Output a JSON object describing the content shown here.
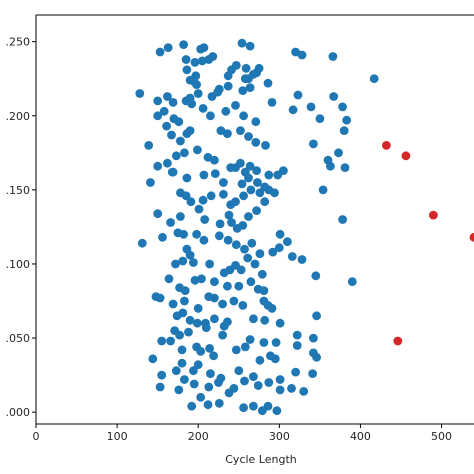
{
  "chart_data": {
    "type": "scatter",
    "xlabel": "Cycle Length",
    "xlim": [
      0,
      540
    ],
    "ylim": [
      -0.008,
      0.268
    ],
    "x_ticks": [
      0,
      100,
      200,
      300,
      400,
      500
    ],
    "x_tick_labels": [
      "0",
      "100",
      "200",
      "300",
      "400",
      "500"
    ],
    "y_ticks": [
      0.0,
      0.05,
      0.1,
      0.15,
      0.2,
      0.25
    ],
    "y_tick_labels": [
      ".000",
      ".050",
      ".100",
      ".150",
      ".200",
      ".250"
    ],
    "grid": false,
    "colors": {
      "normal": "#1f77b4",
      "highlight": "#d62728"
    },
    "series": [
      {
        "color": "#1f77b4",
        "points": [
          [
            153,
            0.243
          ],
          [
            163,
            0.246
          ],
          [
            182,
            0.248
          ],
          [
            203,
            0.245
          ],
          [
            207,
            0.246
          ],
          [
            254,
            0.249
          ],
          [
            264,
            0.247
          ],
          [
            320,
            0.243
          ],
          [
            328,
            0.241
          ],
          [
            366,
            0.24
          ],
          [
            417,
            0.225
          ],
          [
            185,
            0.238
          ],
          [
            196,
            0.236
          ],
          [
            205,
            0.237
          ],
          [
            213,
            0.238
          ],
          [
            218,
            0.24
          ],
          [
            247,
            0.234
          ],
          [
            259,
            0.232
          ],
          [
            268,
            0.228
          ],
          [
            275,
            0.232
          ],
          [
            186,
            0.231
          ],
          [
            190,
            0.224
          ],
          [
            197,
            0.227
          ],
          [
            237,
            0.227
          ],
          [
            241,
            0.231
          ],
          [
            262,
            0.225
          ],
          [
            272,
            0.229
          ],
          [
            195,
            0.223
          ],
          [
            198,
            0.221
          ],
          [
            224,
            0.216
          ],
          [
            237,
            0.22
          ],
          [
            258,
            0.225
          ],
          [
            286,
            0.222
          ],
          [
            128,
            0.215
          ],
          [
            150,
            0.21
          ],
          [
            162,
            0.213
          ],
          [
            169,
            0.209
          ],
          [
            185,
            0.21
          ],
          [
            190,
            0.212
          ],
          [
            200,
            0.215
          ],
          [
            217,
            0.213
          ],
          [
            226,
            0.218
          ],
          [
            255,
            0.217
          ],
          [
            264,
            0.219
          ],
          [
            323,
            0.214
          ],
          [
            339,
            0.206
          ],
          [
            350,
            0.198
          ],
          [
            378,
            0.206
          ],
          [
            367,
            0.213
          ],
          [
            150,
            0.2
          ],
          [
            158,
            0.203
          ],
          [
            170,
            0.198
          ],
          [
            176,
            0.196
          ],
          [
            192,
            0.208
          ],
          [
            206,
            0.205
          ],
          [
            215,
            0.2
          ],
          [
            234,
            0.203
          ],
          [
            246,
            0.207
          ],
          [
            256,
            0.2
          ],
          [
            271,
            0.196
          ],
          [
            291,
            0.209
          ],
          [
            317,
            0.204
          ],
          [
            380,
            0.19
          ],
          [
            383,
            0.197
          ],
          [
            373,
            0.175
          ],
          [
            360,
            0.17
          ],
          [
            161,
            0.193
          ],
          [
            167,
            0.187
          ],
          [
            178,
            0.183
          ],
          [
            186,
            0.188
          ],
          [
            190,
            0.19
          ],
          [
            228,
            0.19
          ],
          [
            236,
            0.188
          ],
          [
            252,
            0.19
          ],
          [
            262,
            0.186
          ],
          [
            271,
            0.182
          ],
          [
            283,
            0.18
          ],
          [
            342,
            0.181
          ],
          [
            139,
            0.18
          ],
          [
            162,
            0.168
          ],
          [
            168,
            0.162
          ],
          [
            173,
            0.173
          ],
          [
            183,
            0.175
          ],
          [
            199,
            0.177
          ],
          [
            212,
            0.172
          ],
          [
            220,
            0.17
          ],
          [
            240,
            0.165
          ],
          [
            246,
            0.165
          ],
          [
            252,
            0.168
          ],
          [
            258,
            0.162
          ],
          [
            264,
            0.166
          ],
          [
            272,
            0.163
          ],
          [
            287,
            0.16
          ],
          [
            298,
            0.16
          ],
          [
            305,
            0.163
          ],
          [
            363,
            0.166
          ],
          [
            381,
            0.165
          ],
          [
            150,
            0.166
          ],
          [
            169,
            0.162
          ],
          [
            186,
            0.158
          ],
          [
            207,
            0.16
          ],
          [
            221,
            0.161
          ],
          [
            231,
            0.155
          ],
          [
            254,
            0.154
          ],
          [
            262,
            0.158
          ],
          [
            273,
            0.155
          ],
          [
            282,
            0.152
          ],
          [
            287,
            0.15
          ],
          [
            294,
            0.148
          ],
          [
            141,
            0.155
          ],
          [
            178,
            0.148
          ],
          [
            185,
            0.146
          ],
          [
            191,
            0.142
          ],
          [
            206,
            0.143
          ],
          [
            216,
            0.146
          ],
          [
            231,
            0.147
          ],
          [
            240,
            0.14
          ],
          [
            246,
            0.142
          ],
          [
            256,
            0.146
          ],
          [
            265,
            0.15
          ],
          [
            276,
            0.148
          ],
          [
            282,
            0.142
          ],
          [
            354,
            0.15
          ],
          [
            150,
            0.134
          ],
          [
            166,
            0.128
          ],
          [
            178,
            0.132
          ],
          [
            201,
            0.137
          ],
          [
            208,
            0.13
          ],
          [
            227,
            0.127
          ],
          [
            238,
            0.133
          ],
          [
            241,
            0.128
          ],
          [
            248,
            0.124
          ],
          [
            255,
            0.126
          ],
          [
            262,
            0.132
          ],
          [
            272,
            0.136
          ],
          [
            301,
            0.12
          ],
          [
            310,
            0.115
          ],
          [
            378,
            0.13
          ],
          [
            131,
            0.114
          ],
          [
            156,
            0.118
          ],
          [
            175,
            0.121
          ],
          [
            182,
            0.12
          ],
          [
            186,
            0.11
          ],
          [
            190,
            0.106
          ],
          [
            198,
            0.12
          ],
          [
            207,
            0.116
          ],
          [
            226,
            0.119
          ],
          [
            237,
            0.116
          ],
          [
            247,
            0.113
          ],
          [
            257,
            0.11
          ],
          [
            266,
            0.114
          ],
          [
            276,
            0.107
          ],
          [
            292,
            0.108
          ],
          [
            300,
            0.111
          ],
          [
            316,
            0.105
          ],
          [
            172,
            0.1
          ],
          [
            181,
            0.102
          ],
          [
            194,
            0.101
          ],
          [
            214,
            0.1
          ],
          [
            239,
            0.096
          ],
          [
            246,
            0.099
          ],
          [
            253,
            0.096
          ],
          [
            261,
            0.104
          ],
          [
            270,
            0.1
          ],
          [
            279,
            0.093
          ],
          [
            328,
            0.103
          ],
          [
            164,
            0.09
          ],
          [
            177,
            0.084
          ],
          [
            184,
            0.082
          ],
          [
            196,
            0.089
          ],
          [
            204,
            0.09
          ],
          [
            220,
            0.088
          ],
          [
            232,
            0.094
          ],
          [
            236,
            0.085
          ],
          [
            250,
            0.085
          ],
          [
            265,
            0.088
          ],
          [
            274,
            0.083
          ],
          [
            281,
            0.082
          ],
          [
            345,
            0.092
          ],
          [
            390,
            0.088
          ],
          [
            148,
            0.078
          ],
          [
            153,
            0.077
          ],
          [
            169,
            0.073
          ],
          [
            183,
            0.075
          ],
          [
            200,
            0.07
          ],
          [
            213,
            0.078
          ],
          [
            220,
            0.077
          ],
          [
            230,
            0.073
          ],
          [
            244,
            0.075
          ],
          [
            255,
            0.072
          ],
          [
            281,
            0.075
          ],
          [
            286,
            0.072
          ],
          [
            291,
            0.07
          ],
          [
            174,
            0.065
          ],
          [
            181,
            0.067
          ],
          [
            190,
            0.062
          ],
          [
            199,
            0.06
          ],
          [
            209,
            0.06
          ],
          [
            220,
            0.063
          ],
          [
            232,
            0.058
          ],
          [
            236,
            0.061
          ],
          [
            268,
            0.063
          ],
          [
            282,
            0.062
          ],
          [
            301,
            0.06
          ],
          [
            346,
            0.065
          ],
          [
            171,
            0.055
          ],
          [
            177,
            0.052
          ],
          [
            188,
            0.054
          ],
          [
            210,
            0.057
          ],
          [
            230,
            0.052
          ],
          [
            264,
            0.049
          ],
          [
            281,
            0.047
          ],
          [
            322,
            0.052
          ],
          [
            342,
            0.05
          ],
          [
            296,
            0.047
          ],
          [
            144,
            0.036
          ],
          [
            155,
            0.048
          ],
          [
            166,
            0.048
          ],
          [
            180,
            0.042
          ],
          [
            198,
            0.044
          ],
          [
            203,
            0.041
          ],
          [
            214,
            0.043
          ],
          [
            219,
            0.038
          ],
          [
            247,
            0.042
          ],
          [
            258,
            0.044
          ],
          [
            276,
            0.035
          ],
          [
            289,
            0.038
          ],
          [
            295,
            0.036
          ],
          [
            322,
            0.045
          ],
          [
            342,
            0.04
          ],
          [
            346,
            0.037
          ],
          [
            341,
            0.026
          ],
          [
            155,
            0.025
          ],
          [
            173,
            0.028
          ],
          [
            180,
            0.033
          ],
          [
            194,
            0.028
          ],
          [
            200,
            0.032
          ],
          [
            215,
            0.026
          ],
          [
            228,
            0.023
          ],
          [
            250,
            0.028
          ],
          [
            268,
            0.024
          ],
          [
            287,
            0.02
          ],
          [
            301,
            0.022
          ],
          [
            320,
            0.027
          ],
          [
            153,
            0.017
          ],
          [
            176,
            0.015
          ],
          [
            183,
            0.022
          ],
          [
            195,
            0.019
          ],
          [
            213,
            0.017
          ],
          [
            225,
            0.02
          ],
          [
            238,
            0.013
          ],
          [
            244,
            0.016
          ],
          [
            257,
            0.021
          ],
          [
            274,
            0.018
          ],
          [
            301,
            0.015
          ],
          [
            315,
            0.016
          ],
          [
            330,
            0.014
          ],
          [
            192,
            0.004
          ],
          [
            203,
            0.01
          ],
          [
            212,
            0.005
          ],
          [
            226,
            0.006
          ],
          [
            256,
            0.003
          ],
          [
            268,
            0.004
          ],
          [
            279,
            0.001
          ],
          [
            286,
            0.004
          ],
          [
            297,
            0.001
          ]
        ]
      },
      {
        "color": "#d62728",
        "points": [
          [
            432,
            0.18
          ],
          [
            456,
            0.173
          ],
          [
            490,
            0.133
          ],
          [
            540,
            0.118
          ],
          [
            446,
            0.048
          ]
        ]
      }
    ]
  }
}
